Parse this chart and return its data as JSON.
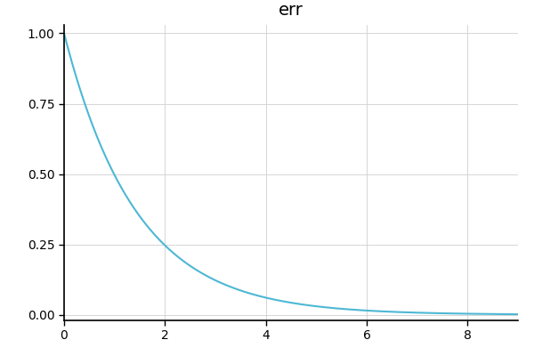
{
  "title": "err",
  "title_fontsize": 14,
  "line_color": "#4db8d4",
  "line_width": 1.5,
  "x_min": 0,
  "x_max": 9,
  "y_min": -0.02,
  "y_max": 1.03,
  "x_ticks": [
    0,
    2,
    4,
    6,
    8
  ],
  "y_ticks": [
    0.0,
    0.25,
    0.5,
    0.75,
    1.0
  ],
  "grid_color": "#d0d0d0",
  "grid_alpha": 1.0,
  "background_color": "#ffffff",
  "spine_color": "#000000",
  "tick_label_fontsize": 10,
  "decay_rate": 0.7
}
